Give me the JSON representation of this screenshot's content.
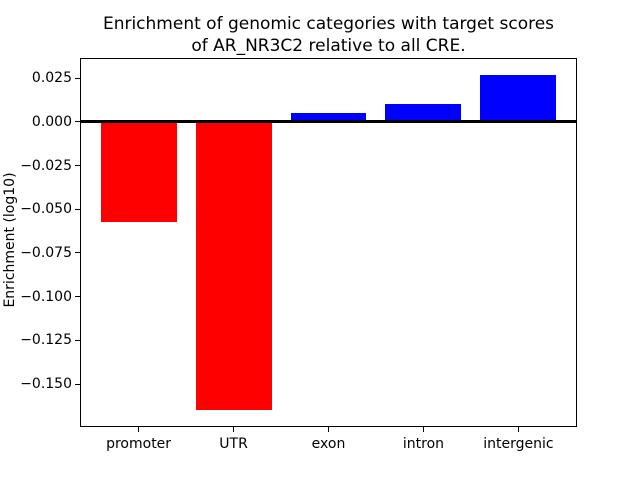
{
  "chart_data": {
    "type": "bar",
    "title": "Enrichment of genomic categories with target scores\nof AR_NR3C2 relative to all CRE.",
    "title_lines": [
      "Enrichment of genomic categories with target scores",
      "of AR_NR3C2 relative to all CRE."
    ],
    "ylabel": "Enrichment (log10)",
    "xlabel": "",
    "categories": [
      "promoter",
      "UTR",
      "exon",
      "intron",
      "intergenic"
    ],
    "values": [
      -0.057,
      -0.165,
      0.005,
      0.01,
      0.027
    ],
    "bar_colors": [
      "#ff0000",
      "#ff0000",
      "#0000ff",
      "#0000ff",
      "#0000ff"
    ],
    "negative_color": "#ff0000",
    "positive_color": "#0000ff",
    "ylim": [
      -0.1746,
      0.0366
    ],
    "yticks": [
      0.025,
      0.0,
      -0.025,
      -0.05,
      -0.075,
      -0.1,
      -0.125,
      -0.15
    ],
    "ytick_labels": [
      "0.025",
      "0.000",
      "−0.025",
      "−0.050",
      "−0.075",
      "−0.100",
      "−0.125",
      "−0.150"
    ],
    "zero_line": true,
    "grid": false,
    "legend": false,
    "axis_color": "#000000",
    "text_color": "#000000",
    "background": "#ffffff"
  }
}
